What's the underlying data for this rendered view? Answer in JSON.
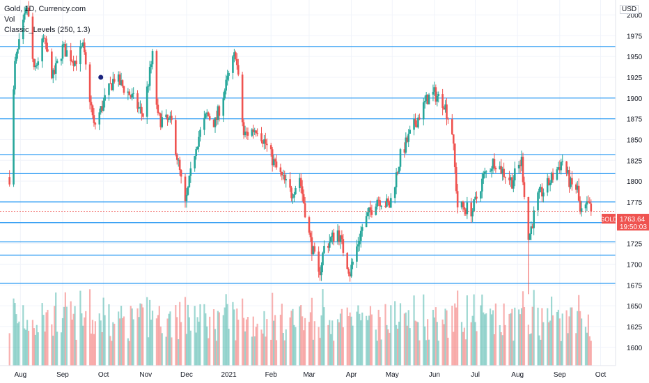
{
  "legend": {
    "symbol_line": "Gold, 1D, Currency.com",
    "vol_label": "Vol",
    "indicator_line": "Classic_Levels (250, 1.3)"
  },
  "currency_label": "USD",
  "price_tag": {
    "name": "GOLD",
    "value": "1763.64",
    "countdown": "19:50:03",
    "color": "#ef5350"
  },
  "colors": {
    "up": "#26a69a",
    "down": "#ef5350",
    "level": "#2196f3",
    "grid": "#f0f3fa",
    "marker": "#1a237e"
  },
  "chart_data": {
    "type": "candlestick",
    "title": "Gold, 1D, Currency.com",
    "ylabel": "USD",
    "ylim": [
      1578,
      2018
    ],
    "y_ticks": [
      1600,
      1625,
      1650,
      1675,
      1700,
      1725,
      1750,
      1775,
      1800,
      1825,
      1850,
      1875,
      1900,
      1925,
      1950,
      1975,
      2000
    ],
    "x_ticks": [
      "Aug",
      "Sep",
      "Oct",
      "Nov",
      "Dec",
      "2021",
      "Feb",
      "Mar",
      "Apr",
      "May",
      "Jun",
      "Jul",
      "Aug",
      "Sep",
      "Oct"
    ],
    "levels": [
      1962,
      1900,
      1875,
      1832,
      1809,
      1775,
      1750,
      1727,
      1711,
      1677
    ],
    "last_price": 1763.64,
    "marker": {
      "date": "Sep 29",
      "price": 1925
    },
    "price_path": [
      [
        "Jul 24",
        1805
      ],
      [
        "Jul 28",
        1940
      ],
      [
        "Aug 6",
        2010
      ],
      [
        "Aug 11",
        1930
      ],
      [
        "Aug 18",
        1970
      ],
      [
        "Aug 25",
        1925
      ],
      [
        "Sep 1",
        1960
      ],
      [
        "Sep 10",
        1945
      ],
      [
        "Sep 16",
        1960
      ],
      [
        "Sep 24",
        1865
      ],
      [
        "Sep 30",
        1890
      ],
      [
        "Oct 9",
        1925
      ],
      [
        "Oct 20",
        1905
      ],
      [
        "Oct 30",
        1880
      ],
      [
        "Nov 6",
        1950
      ],
      [
        "Nov 10",
        1875
      ],
      [
        "Nov 20",
        1870
      ],
      [
        "Nov 30",
        1770
      ],
      [
        "Dec 8",
        1845
      ],
      [
        "Dec 16",
        1880
      ],
      [
        "Dec 22",
        1870
      ],
      [
        "Jan 6",
        1955
      ],
      [
        "Jan 12",
        1855
      ],
      [
        "Jan 22",
        1865
      ],
      [
        "Jan 28",
        1845
      ],
      [
        "Feb 5",
        1815
      ],
      [
        "Feb 16",
        1785
      ],
      [
        "Feb 22",
        1805
      ],
      [
        "Mar 1",
        1735
      ],
      [
        "Mar 8",
        1685
      ],
      [
        "Mar 12",
        1720
      ],
      [
        "Mar 22",
        1740
      ],
      [
        "Mar 31",
        1690
      ],
      [
        "Apr 9",
        1745
      ],
      [
        "Apr 20",
        1780
      ],
      [
        "Apr 29",
        1770
      ],
      [
        "May 7",
        1830
      ],
      [
        "May 18",
        1870
      ],
      [
        "May 27",
        1900
      ],
      [
        "Jun 1",
        1905
      ],
      [
        "Jun 8",
        1895
      ],
      [
        "Jun 14",
        1860
      ],
      [
        "Jun 18",
        1770
      ],
      [
        "Jun 29",
        1765
      ],
      [
        "Jul 7",
        1805
      ],
      [
        "Jul 15",
        1825
      ],
      [
        "Jul 22",
        1810
      ],
      [
        "Jul 28",
        1800
      ],
      [
        "Aug 4",
        1825
      ],
      [
        "Aug 9",
        1730
      ],
      [
        "Aug 16",
        1780
      ],
      [
        "Aug 23",
        1795
      ],
      [
        "Sep 3",
        1825
      ],
      [
        "Sep 9",
        1795
      ],
      [
        "Sep 14",
        1790
      ],
      [
        "Sep 16",
        1760
      ],
      [
        "Sep 22",
        1770
      ],
      [
        "Sep 24",
        1763.64
      ]
    ]
  }
}
